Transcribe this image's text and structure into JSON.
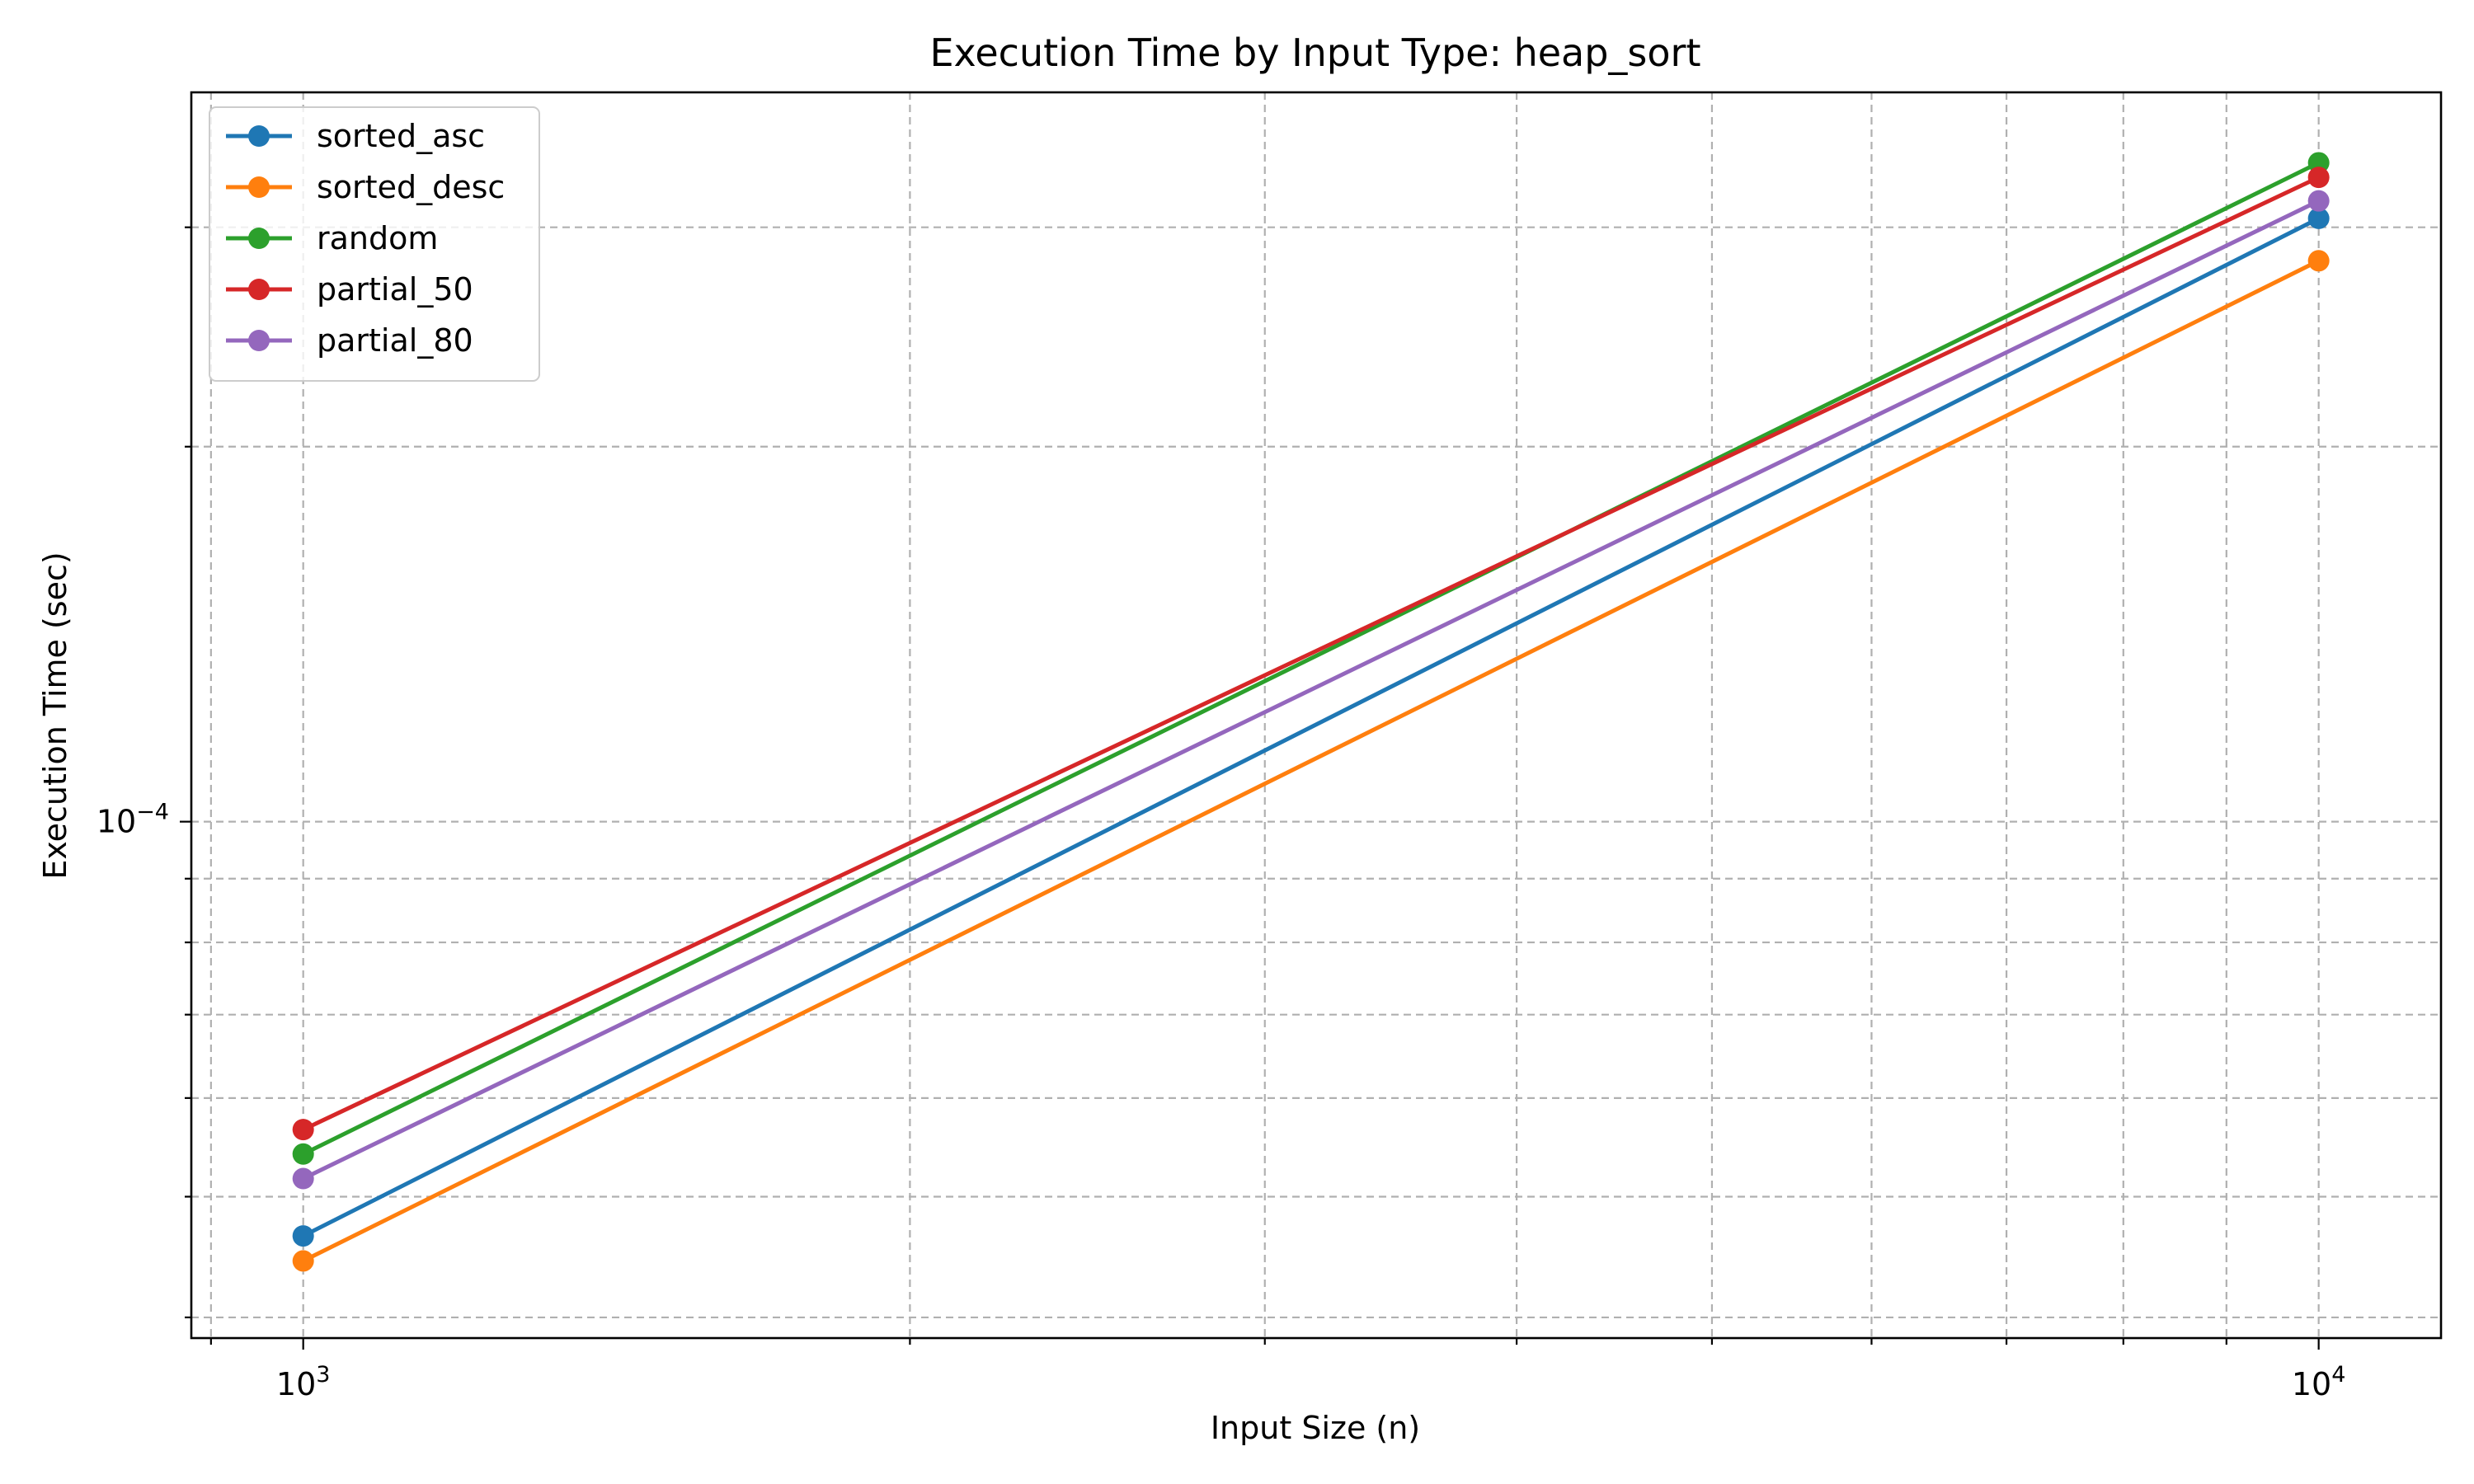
{
  "chart_data": {
    "type": "line",
    "title": "Execution Time by Input Type: heap_sort",
    "xlabel": "Input Size (n)",
    "ylabel": "Execution Time (sec)",
    "xscale": "log",
    "yscale": "log",
    "xlim": [
      880,
      11500
    ],
    "ylim": [
      3.85e-05,
      0.000385
    ],
    "x_ticks": [
      {
        "value": 1000,
        "base": "10",
        "exp": "3"
      },
      {
        "value": 10000,
        "base": "10",
        "exp": "4"
      }
    ],
    "y_ticks": [
      {
        "value": 0.0001,
        "base": "10",
        "exp": "−4"
      }
    ],
    "grid": true,
    "legend_position": "top-left",
    "x": [
      1000,
      10000
    ],
    "series": [
      {
        "name": "sorted_asc",
        "color": "#1f77b4",
        "values": [
          4.65e-05,
          0.000305
        ]
      },
      {
        "name": "sorted_desc",
        "color": "#ff7f0e",
        "values": [
          4.44e-05,
          0.000282
        ]
      },
      {
        "name": "random",
        "color": "#2ca02c",
        "values": [
          5.41e-05,
          0.000338
        ]
      },
      {
        "name": "partial_50",
        "color": "#d62728",
        "values": [
          5.66e-05,
          0.000329
        ]
      },
      {
        "name": "partial_80",
        "color": "#9467bd",
        "values": [
          5.17e-05,
          0.000315
        ]
      }
    ]
  }
}
